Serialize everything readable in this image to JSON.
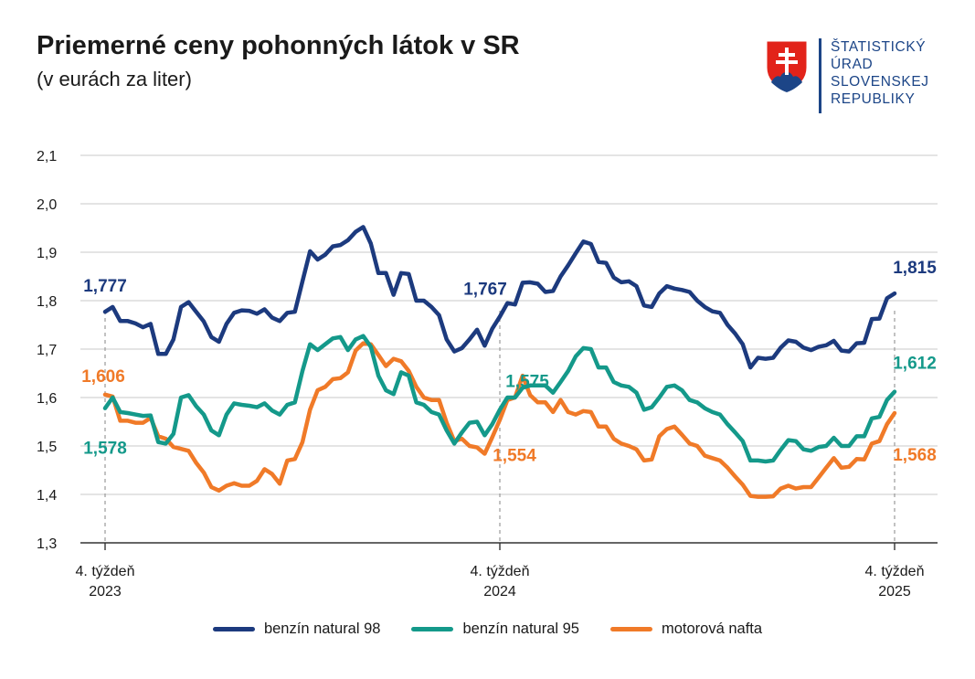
{
  "header": {
    "title": "Priemerné ceny pohonných látok v SR",
    "subtitle": "(v eurách za liter)"
  },
  "logo": {
    "lines": [
      "ŠTATISTICKÝ",
      "ÚRAD",
      "SLOVENSKEJ",
      "REPUBLIKY"
    ],
    "color": "#1c4587"
  },
  "chart_data": {
    "type": "line",
    "title": "Priemerné ceny pohonných látok v SR",
    "subtitle": "(v eurách za liter)",
    "xlabel": "",
    "ylabel": "",
    "ylim": [
      1.3,
      2.1
    ],
    "yticks": [
      "2,1",
      "2,0",
      "1,9",
      "1,8",
      "1,7",
      "1,6",
      "1,5",
      "1,4",
      "1,3"
    ],
    "grid": true,
    "legend_position": "bottom",
    "x_ticks": [
      {
        "index": 0,
        "line1": "4. týždeň",
        "line2": "2023"
      },
      {
        "index": 52,
        "line1": "4. týždeň",
        "line2": "2024"
      },
      {
        "index": 104,
        "line1": "4. týždeň",
        "line2": "2025"
      }
    ],
    "series": [
      {
        "name": "benzín natural 98",
        "color": "#1c3a7e",
        "values": [
          1.777,
          1.787,
          1.758,
          1.758,
          1.753,
          1.745,
          1.752,
          1.69,
          1.69,
          1.72,
          1.787,
          1.797,
          1.777,
          1.757,
          1.725,
          1.715,
          1.752,
          1.775,
          1.78,
          1.779,
          1.773,
          1.782,
          1.765,
          1.758,
          1.775,
          1.777,
          1.84,
          1.902,
          1.885,
          1.895,
          1.912,
          1.915,
          1.925,
          1.942,
          1.952,
          1.918,
          1.857,
          1.857,
          1.812,
          1.857,
          1.855,
          1.8,
          1.8,
          1.787,
          1.77,
          1.72,
          1.695,
          1.702,
          1.72,
          1.74,
          1.707,
          1.742,
          1.767,
          1.795,
          1.792,
          1.837,
          1.838,
          1.835,
          1.818,
          1.82,
          1.85,
          1.873,
          1.898,
          1.922,
          1.917,
          1.88,
          1.878,
          1.848,
          1.838,
          1.84,
          1.83,
          1.79,
          1.787,
          1.815,
          1.83,
          1.825,
          1.822,
          1.818,
          1.8,
          1.787,
          1.778,
          1.775,
          1.75,
          1.732,
          1.71,
          1.662,
          1.682,
          1.68,
          1.682,
          1.703,
          1.718,
          1.715,
          1.703,
          1.698,
          1.705,
          1.708,
          1.717,
          1.697,
          1.695,
          1.712,
          1.713,
          1.762,
          1.763,
          1.805,
          1.815
        ]
      },
      {
        "name": "benzín natural 95",
        "color": "#14998a",
        "values": [
          1.578,
          1.6,
          1.57,
          1.568,
          1.565,
          1.562,
          1.563,
          1.508,
          1.505,
          1.525,
          1.6,
          1.605,
          1.582,
          1.565,
          1.532,
          1.522,
          1.565,
          1.588,
          1.585,
          1.583,
          1.58,
          1.588,
          1.573,
          1.565,
          1.585,
          1.59,
          1.655,
          1.71,
          1.698,
          1.71,
          1.722,
          1.725,
          1.698,
          1.72,
          1.727,
          1.705,
          1.645,
          1.615,
          1.607,
          1.652,
          1.645,
          1.59,
          1.585,
          1.57,
          1.565,
          1.532,
          1.505,
          1.528,
          1.548,
          1.55,
          1.522,
          1.545,
          1.575,
          1.6,
          1.6,
          1.62,
          1.625,
          1.625,
          1.625,
          1.61,
          1.632,
          1.655,
          1.685,
          1.702,
          1.7,
          1.662,
          1.662,
          1.632,
          1.625,
          1.622,
          1.61,
          1.575,
          1.58,
          1.6,
          1.622,
          1.625,
          1.615,
          1.595,
          1.59,
          1.578,
          1.57,
          1.565,
          1.545,
          1.528,
          1.51,
          1.47,
          1.47,
          1.468,
          1.47,
          1.492,
          1.512,
          1.51,
          1.493,
          1.49,
          1.498,
          1.5,
          1.517,
          1.5,
          1.5,
          1.52,
          1.52,
          1.557,
          1.56,
          1.595,
          1.612
        ]
      },
      {
        "name": "motorová nafta",
        "color": "#f07a28",
        "values": [
          1.606,
          1.602,
          1.552,
          1.552,
          1.548,
          1.548,
          1.558,
          1.52,
          1.515,
          1.498,
          1.494,
          1.49,
          1.465,
          1.445,
          1.415,
          1.408,
          1.418,
          1.423,
          1.418,
          1.418,
          1.428,
          1.452,
          1.442,
          1.422,
          1.47,
          1.473,
          1.508,
          1.575,
          1.615,
          1.622,
          1.638,
          1.64,
          1.652,
          1.697,
          1.712,
          1.71,
          1.688,
          1.665,
          1.68,
          1.675,
          1.655,
          1.622,
          1.6,
          1.595,
          1.595,
          1.548,
          1.51,
          1.515,
          1.5,
          1.497,
          1.484,
          1.518,
          1.554,
          1.595,
          1.6,
          1.645,
          1.605,
          1.59,
          1.59,
          1.57,
          1.595,
          1.57,
          1.565,
          1.572,
          1.57,
          1.54,
          1.54,
          1.515,
          1.505,
          1.5,
          1.493,
          1.47,
          1.472,
          1.52,
          1.535,
          1.54,
          1.523,
          1.505,
          1.5,
          1.48,
          1.475,
          1.47,
          1.455,
          1.437,
          1.42,
          1.397,
          1.395,
          1.395,
          1.396,
          1.412,
          1.418,
          1.412,
          1.415,
          1.415,
          1.435,
          1.455,
          1.475,
          1.455,
          1.457,
          1.473,
          1.472,
          1.505,
          1.51,
          1.545,
          1.568
        ]
      }
    ],
    "annotations": [
      {
        "series": "benzín natural 98",
        "index": 0,
        "text": "1,777"
      },
      {
        "series": "benzín natural 98",
        "index": 52,
        "text": "1,767"
      },
      {
        "series": "benzín natural 98",
        "index": 104,
        "text": "1,815"
      },
      {
        "series": "benzín natural 95",
        "index": 0,
        "text": "1,578"
      },
      {
        "series": "benzín natural 95",
        "index": 52,
        "text": "1,575"
      },
      {
        "series": "benzín natural 95",
        "index": 104,
        "text": "1,612"
      },
      {
        "series": "motorová nafta",
        "index": 0,
        "text": "1,606"
      },
      {
        "series": "motorová nafta",
        "index": 52,
        "text": "1,554"
      },
      {
        "series": "motorová nafta",
        "index": 104,
        "text": "1,568"
      }
    ]
  },
  "legend": [
    {
      "label": "benzín natural 98",
      "color": "#1c3a7e"
    },
    {
      "label": "benzín natural 95",
      "color": "#14998a"
    },
    {
      "label": "motorová nafta",
      "color": "#f07a28"
    }
  ]
}
